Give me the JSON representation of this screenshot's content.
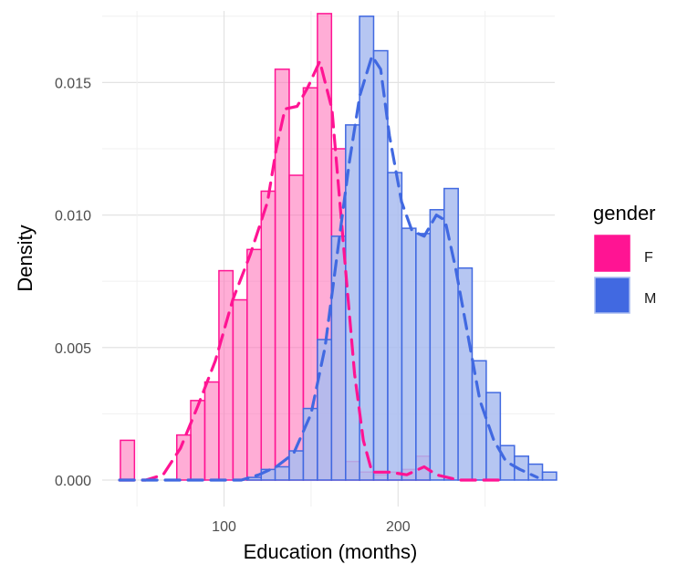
{
  "chart_data": {
    "type": "histogram",
    "xlabel": "Education (months)",
    "ylabel": "Density",
    "xlim": [
      30,
      290
    ],
    "ylim": [
      -0.001,
      0.0177
    ],
    "x_ticks": [
      100,
      200
    ],
    "x_tick_labels": [
      "100",
      "200"
    ],
    "y_ticks": [
      0,
      0.005,
      0.01,
      0.015
    ],
    "y_tick_labels": [
      "0.000",
      "0.005",
      "0.010",
      "0.015"
    ],
    "grid": true,
    "legend": {
      "title": "gender",
      "position": "right",
      "entries": [
        {
          "label": "F",
          "color": "#FF1493"
        },
        {
          "label": "M",
          "color": "#4169E1"
        }
      ]
    },
    "bin_width": 8.08,
    "series": [
      {
        "name": "F",
        "color": "#FF1493",
        "fill": "#FF69B4",
        "fill_opacity": 0.55,
        "bins": [
          {
            "x": 44.5,
            "density": 0.0015
          },
          {
            "x": 76.9,
            "density": 0.0017
          },
          {
            "x": 84.9,
            "density": 0.003
          },
          {
            "x": 93.0,
            "density": 0.0037
          },
          {
            "x": 101.1,
            "density": 0.0079
          },
          {
            "x": 109.2,
            "density": 0.0068
          },
          {
            "x": 117.3,
            "density": 0.0087
          },
          {
            "x": 125.4,
            "density": 0.0109
          },
          {
            "x": 133.4,
            "density": 0.0155
          },
          {
            "x": 141.5,
            "density": 0.0115
          },
          {
            "x": 149.6,
            "density": 0.0148
          },
          {
            "x": 157.7,
            "density": 0.0176
          },
          {
            "x": 165.8,
            "density": 0.0125
          },
          {
            "x": 173.9,
            "density": 0.0007
          },
          {
            "x": 181.9,
            "density": 0.0003
          },
          {
            "x": 190.0,
            "density": 0.0002
          },
          {
            "x": 198.1,
            "density": 0.0003
          },
          {
            "x": 206.2,
            "density": 0.0004
          },
          {
            "x": 214.3,
            "density": 0.0009
          }
        ]
      },
      {
        "name": "M",
        "color": "#4169E1",
        "fill": "#A9BCF0",
        "fill_opacity": 0.85,
        "bins": [
          {
            "x": 117.3,
            "density": 0.0001
          },
          {
            "x": 125.4,
            "density": 0.0004
          },
          {
            "x": 133.4,
            "density": 0.0005
          },
          {
            "x": 141.5,
            "density": 0.0011
          },
          {
            "x": 149.6,
            "density": 0.0027
          },
          {
            "x": 157.7,
            "density": 0.0053
          },
          {
            "x": 165.8,
            "density": 0.0092
          },
          {
            "x": 173.9,
            "density": 0.0134
          },
          {
            "x": 181.9,
            "density": 0.0175
          },
          {
            "x": 190.0,
            "density": 0.0162
          },
          {
            "x": 198.1,
            "density": 0.0116
          },
          {
            "x": 206.2,
            "density": 0.0095
          },
          {
            "x": 214.3,
            "density": 0.0093
          },
          {
            "x": 222.4,
            "density": 0.0102
          },
          {
            "x": 230.5,
            "density": 0.011
          },
          {
            "x": 238.5,
            "density": 0.008
          },
          {
            "x": 246.6,
            "density": 0.0045
          },
          {
            "x": 254.7,
            "density": 0.0033
          },
          {
            "x": 262.8,
            "density": 0.0013
          },
          {
            "x": 270.9,
            "density": 0.0009
          },
          {
            "x": 278.9,
            "density": 0.0006
          },
          {
            "x": 287.0,
            "density": 0.0003
          }
        ]
      }
    ],
    "density_curves": [
      {
        "name": "F",
        "color": "#FF1493",
        "line_style": "dashed",
        "points": [
          [
            40,
            0.0
          ],
          [
            55,
            0.0
          ],
          [
            65,
            0.0002
          ],
          [
            75,
            0.0012
          ],
          [
            85,
            0.0028
          ],
          [
            95,
            0.0045
          ],
          [
            105,
            0.0068
          ],
          [
            115,
            0.0085
          ],
          [
            125,
            0.0105
          ],
          [
            130,
            0.0125
          ],
          [
            135,
            0.014
          ],
          [
            142,
            0.0141
          ],
          [
            148,
            0.0148
          ],
          [
            155,
            0.0158
          ],
          [
            162,
            0.014
          ],
          [
            170,
            0.0078
          ],
          [
            175,
            0.004
          ],
          [
            180,
            0.0015
          ],
          [
            185,
            0.0003
          ],
          [
            195,
            0.0003
          ],
          [
            205,
            0.0002
          ],
          [
            215,
            0.0005
          ],
          [
            222,
            0.0002
          ],
          [
            235,
            0.0
          ],
          [
            250,
            0.0
          ],
          [
            262,
            0.0
          ]
        ]
      },
      {
        "name": "M",
        "color": "#4169E1",
        "line_style": "dashed",
        "points": [
          [
            40,
            0.0
          ],
          [
            60,
            0.0
          ],
          [
            80,
            0.0
          ],
          [
            100,
            0.0
          ],
          [
            110,
            0.0
          ],
          [
            120,
            0.0002
          ],
          [
            130,
            0.0005
          ],
          [
            140,
            0.001
          ],
          [
            150,
            0.0025
          ],
          [
            158,
            0.005
          ],
          [
            165,
            0.0085
          ],
          [
            172,
            0.012
          ],
          [
            178,
            0.0145
          ],
          [
            185,
            0.016
          ],
          [
            190,
            0.0155
          ],
          [
            195,
            0.013
          ],
          [
            202,
            0.0105
          ],
          [
            208,
            0.0094
          ],
          [
            215,
            0.0092
          ],
          [
            222,
            0.01
          ],
          [
            227,
            0.0098
          ],
          [
            233,
            0.008
          ],
          [
            240,
            0.0055
          ],
          [
            247,
            0.003
          ],
          [
            255,
            0.0015
          ],
          [
            262,
            0.0007
          ],
          [
            270,
            0.0004
          ],
          [
            280,
            0.0001
          ]
        ]
      }
    ]
  }
}
